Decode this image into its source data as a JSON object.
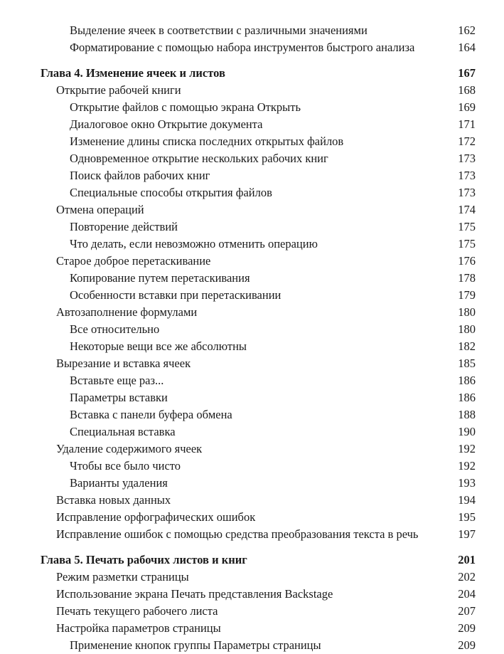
{
  "toc": [
    {
      "level": 2,
      "title": "Выделение ячеек в соответствии с различными значениями",
      "page": "162"
    },
    {
      "level": 2,
      "title": "Форматирование с помощью набора инструментов быстрого анализа",
      "page": "164"
    },
    {
      "level": 0,
      "title": "Глава 4. Изменение ячеек и листов",
      "page": "167"
    },
    {
      "level": 1,
      "title": "Открытие рабочей книги",
      "page": "168"
    },
    {
      "level": 2,
      "title": "Открытие файлов с помощью экрана Открыть",
      "page": "169"
    },
    {
      "level": 2,
      "title": "Диалоговое окно Открытие документа",
      "page": "171"
    },
    {
      "level": 2,
      "title": "Изменение длины списка последних открытых файлов",
      "page": "172"
    },
    {
      "level": 2,
      "title": "Одновременное открытие нескольких рабочих книг",
      "page": "173"
    },
    {
      "level": 2,
      "title": "Поиск файлов рабочих книг",
      "page": "173"
    },
    {
      "level": 2,
      "title": "Специальные способы открытия файлов",
      "page": "173"
    },
    {
      "level": 1,
      "title": "Отмена операций",
      "page": "174"
    },
    {
      "level": 2,
      "title": "Повторение действий",
      "page": "175"
    },
    {
      "level": 2,
      "title": "Что делать, если невозможно отменить операцию",
      "page": "175"
    },
    {
      "level": 1,
      "title": "Старое доброе перетаскивание",
      "page": "176"
    },
    {
      "level": 2,
      "title": "Копирование путем перетаскивания",
      "page": "178"
    },
    {
      "level": 2,
      "title": "Особенности вставки при перетаскивании",
      "page": "179"
    },
    {
      "level": 1,
      "title": "Автозаполнение формулами",
      "page": "180"
    },
    {
      "level": 2,
      "title": "Все относительно",
      "page": "180"
    },
    {
      "level": 2,
      "title": "Некоторые вещи все же абсолютны",
      "page": "182"
    },
    {
      "level": 1,
      "title": "Вырезание и вставка ячеек",
      "page": "185"
    },
    {
      "level": 2,
      "title": "Вставьте еще раз...",
      "page": "186"
    },
    {
      "level": 2,
      "title": "Параметры вставки",
      "page": "186"
    },
    {
      "level": 2,
      "title": "Вставка с панели буфера обмена",
      "page": "188"
    },
    {
      "level": 2,
      "title": "Специальная вставка",
      "page": "190"
    },
    {
      "level": 1,
      "title": "Удаление содержимого ячеек",
      "page": "192"
    },
    {
      "level": 2,
      "title": "Чтобы все было чисто",
      "page": "192"
    },
    {
      "level": 2,
      "title": "Варианты удаления",
      "page": "193"
    },
    {
      "level": 1,
      "title": "Вставка новых данных",
      "page": "194"
    },
    {
      "level": 1,
      "title": "Исправление орфографических ошибок",
      "page": "195"
    },
    {
      "level": 1,
      "title": "Исправление ошибок с помощью средства преобразования текста в речь",
      "page": "197"
    },
    {
      "level": 0,
      "title": "Глава 5. Печать рабочих листов и книг",
      "page": "201"
    },
    {
      "level": 1,
      "title": "Режим разметки страницы",
      "page": "202"
    },
    {
      "level": 1,
      "title": "Использование экрана Печать представления Backstage",
      "page": "204"
    },
    {
      "level": 1,
      "title": "Печать текущего рабочего листа",
      "page": "207"
    },
    {
      "level": 1,
      "title": "Настройка параметров страницы",
      "page": "209"
    },
    {
      "level": 2,
      "title": "Применение кнопок группы Параметры страницы",
      "page": "209"
    }
  ]
}
